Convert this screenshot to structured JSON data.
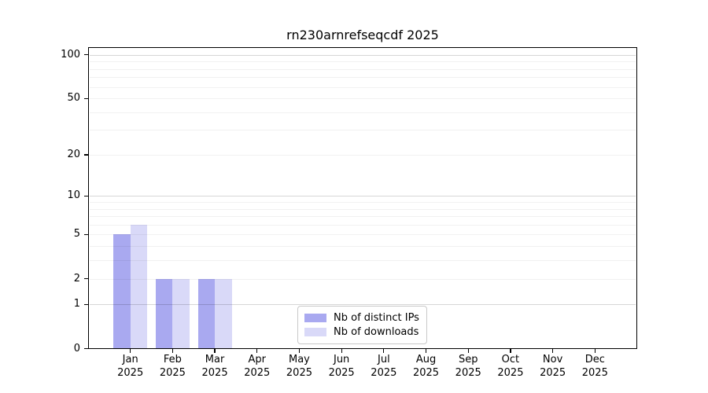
{
  "chart_data": {
    "type": "bar",
    "title": "rn230arnrefseqcdf 2025",
    "categories": [
      "Jan",
      "Feb",
      "Mar",
      "Apr",
      "May",
      "Jun",
      "Jul",
      "Aug",
      "Sep",
      "Oct",
      "Nov",
      "Dec"
    ],
    "xtick_year": "2025",
    "series": [
      {
        "name": "Nb of distinct IPs",
        "color": "#a9a9f0",
        "values": [
          5,
          2,
          2,
          0,
          0,
          0,
          0,
          0,
          0,
          0,
          0,
          0
        ]
      },
      {
        "name": "Nb of downloads",
        "color": "#d9d9f8",
        "values": [
          6,
          2,
          2,
          0,
          0,
          0,
          0,
          0,
          0,
          0,
          0,
          0
        ]
      }
    ],
    "yscale": "log1p",
    "ylim": [
      0,
      113
    ],
    "yticks": [
      {
        "label": "0",
        "value": 0
      },
      {
        "label": "1",
        "value": 1
      },
      {
        "label": "2",
        "value": 2
      },
      {
        "label": "5",
        "value": 5
      },
      {
        "label": "10",
        "value": 10
      },
      {
        "label": "20",
        "value": 20
      },
      {
        "label": "50",
        "value": 50
      },
      {
        "label": "100",
        "value": 100
      }
    ],
    "grid": true,
    "legend_position": "bottom-center",
    "xlabel": "",
    "ylabel": ""
  },
  "colors": {
    "bar_distinct_ips": "#a9a9f0",
    "bar_downloads": "#d9d9f8",
    "grid_minor": "#f1f1f1",
    "grid_major": "#d4d4d4",
    "axis": "#000000",
    "background": "#ffffff"
  }
}
